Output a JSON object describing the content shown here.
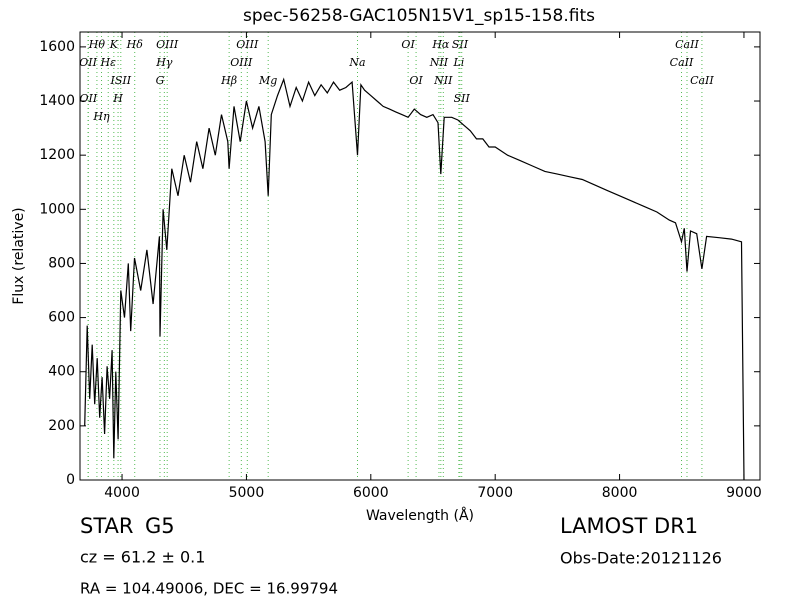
{
  "chart_data": {
    "type": "line",
    "title": "spec-56258-GAC105N15V1_sp15-158.fits",
    "x_label": "Wavelength (Å)",
    "y_label": "Flux (relative)",
    "color": "#000000",
    "line_color": "#55bb55",
    "xlim": [
      3662,
      9129
    ],
    "ylim": [
      0,
      1655
    ],
    "xticks": [
      4000,
      5000,
      6000,
      7000,
      8000,
      9000
    ],
    "yticks": [
      0,
      200,
      400,
      600,
      800,
      1000,
      1200,
      1400,
      1600
    ],
    "x": [
      3700,
      3720,
      3740,
      3760,
      3780,
      3800,
      3820,
      3840,
      3860,
      3880,
      3900,
      3920,
      3934,
      3950,
      3968,
      3990,
      4020,
      4050,
      4070,
      4100,
      4150,
      4200,
      4250,
      4300,
      4305,
      4330,
      4360,
      4400,
      4450,
      4500,
      4550,
      4600,
      4650,
      4700,
      4750,
      4800,
      4850,
      4861,
      4900,
      4950,
      5000,
      5050,
      5100,
      5150,
      5175,
      5200,
      5250,
      5300,
      5350,
      5400,
      5450,
      5500,
      5550,
      5600,
      5650,
      5700,
      5750,
      5800,
      5850,
      5893,
      5920,
      5950,
      6000,
      6050,
      6100,
      6150,
      6200,
      6250,
      6300,
      6350,
      6400,
      6450,
      6500,
      6540,
      6563,
      6590,
      6650,
      6700,
      6750,
      6800,
      6850,
      6900,
      6950,
      7000,
      7100,
      7200,
      7300,
      7400,
      7500,
      7600,
      7700,
      7800,
      7900,
      8000,
      8100,
      8200,
      8300,
      8400,
      8450,
      8498,
      8520,
      8542,
      8570,
      8620,
      8662,
      8700,
      8800,
      8900,
      8980,
      9000
    ],
    "values": [
      200,
      570,
      300,
      500,
      280,
      450,
      230,
      380,
      170,
      420,
      300,
      480,
      80,
      400,
      150,
      700,
      600,
      800,
      550,
      820,
      700,
      850,
      650,
      900,
      530,
      1000,
      850,
      1150,
      1050,
      1200,
      1100,
      1250,
      1150,
      1300,
      1200,
      1350,
      1250,
      1150,
      1380,
      1250,
      1400,
      1300,
      1380,
      1250,
      1050,
      1350,
      1420,
      1480,
      1380,
      1450,
      1400,
      1470,
      1420,
      1460,
      1430,
      1470,
      1440,
      1450,
      1470,
      1200,
      1460,
      1440,
      1420,
      1400,
      1380,
      1370,
      1360,
      1350,
      1340,
      1370,
      1350,
      1340,
      1350,
      1320,
      1130,
      1340,
      1340,
      1330,
      1310,
      1290,
      1260,
      1260,
      1230,
      1230,
      1200,
      1180,
      1160,
      1140,
      1130,
      1120,
      1110,
      1090,
      1070,
      1050,
      1030,
      1010,
      990,
      960,
      950,
      880,
      930,
      770,
      920,
      910,
      780,
      900,
      895,
      890,
      880,
      0
    ],
    "lines": [
      {
        "wavelength": 3798,
        "label": "Hθ"
      },
      {
        "wavelength": 3934,
        "label": "K"
      },
      {
        "wavelength": 4102,
        "label": "Hδ"
      },
      {
        "wavelength": 4363,
        "label": "OIII"
      },
      {
        "wavelength": 5007,
        "label": "OIII"
      },
      {
        "wavelength": 6300,
        "label": "OI"
      },
      {
        "wavelength": 6563,
        "label": "Hα"
      },
      {
        "wavelength": 6717,
        "label": "SII"
      },
      {
        "wavelength": 8542,
        "label": "CaII"
      },
      {
        "wavelength": 3727,
        "label": "OII"
      },
      {
        "wavelength": 3889,
        "label": "Hε"
      },
      {
        "wavelength": 3990,
        "label": "ISII"
      },
      {
        "wavelength": 4340,
        "label": "Hγ"
      },
      {
        "wavelength": 4959,
        "label": "OIII"
      },
      {
        "wavelength": 5893,
        "label": "Na"
      },
      {
        "wavelength": 6548,
        "label": "NII"
      },
      {
        "wavelength": 6708,
        "label": "Li"
      },
      {
        "wavelength": 8498,
        "label": "CaII"
      },
      {
        "wavelength": 3729,
        "label": "OII"
      },
      {
        "wavelength": 3835,
        "label": "Hη"
      },
      {
        "wavelength": 3968,
        "label": "H"
      },
      {
        "wavelength": 4305,
        "label": "G"
      },
      {
        "wavelength": 4861,
        "label": "Hβ"
      },
      {
        "wavelength": 5175,
        "label": "Mg"
      },
      {
        "wavelength": 6364,
        "label": "OI"
      },
      {
        "wavelength": 6583,
        "label": "NII"
      },
      {
        "wavelength": 6731,
        "label": "SII"
      },
      {
        "wavelength": 8662,
        "label": "CaII"
      }
    ],
    "object_class": "STAR",
    "subclass": "G5",
    "redshift": "cz = 61.2 ± 0.1",
    "survey": "LAMOST DR1",
    "obs_date": "Obs-Date:20121126",
    "coords": "RA = 104.49006, DEC = 16.99794"
  }
}
